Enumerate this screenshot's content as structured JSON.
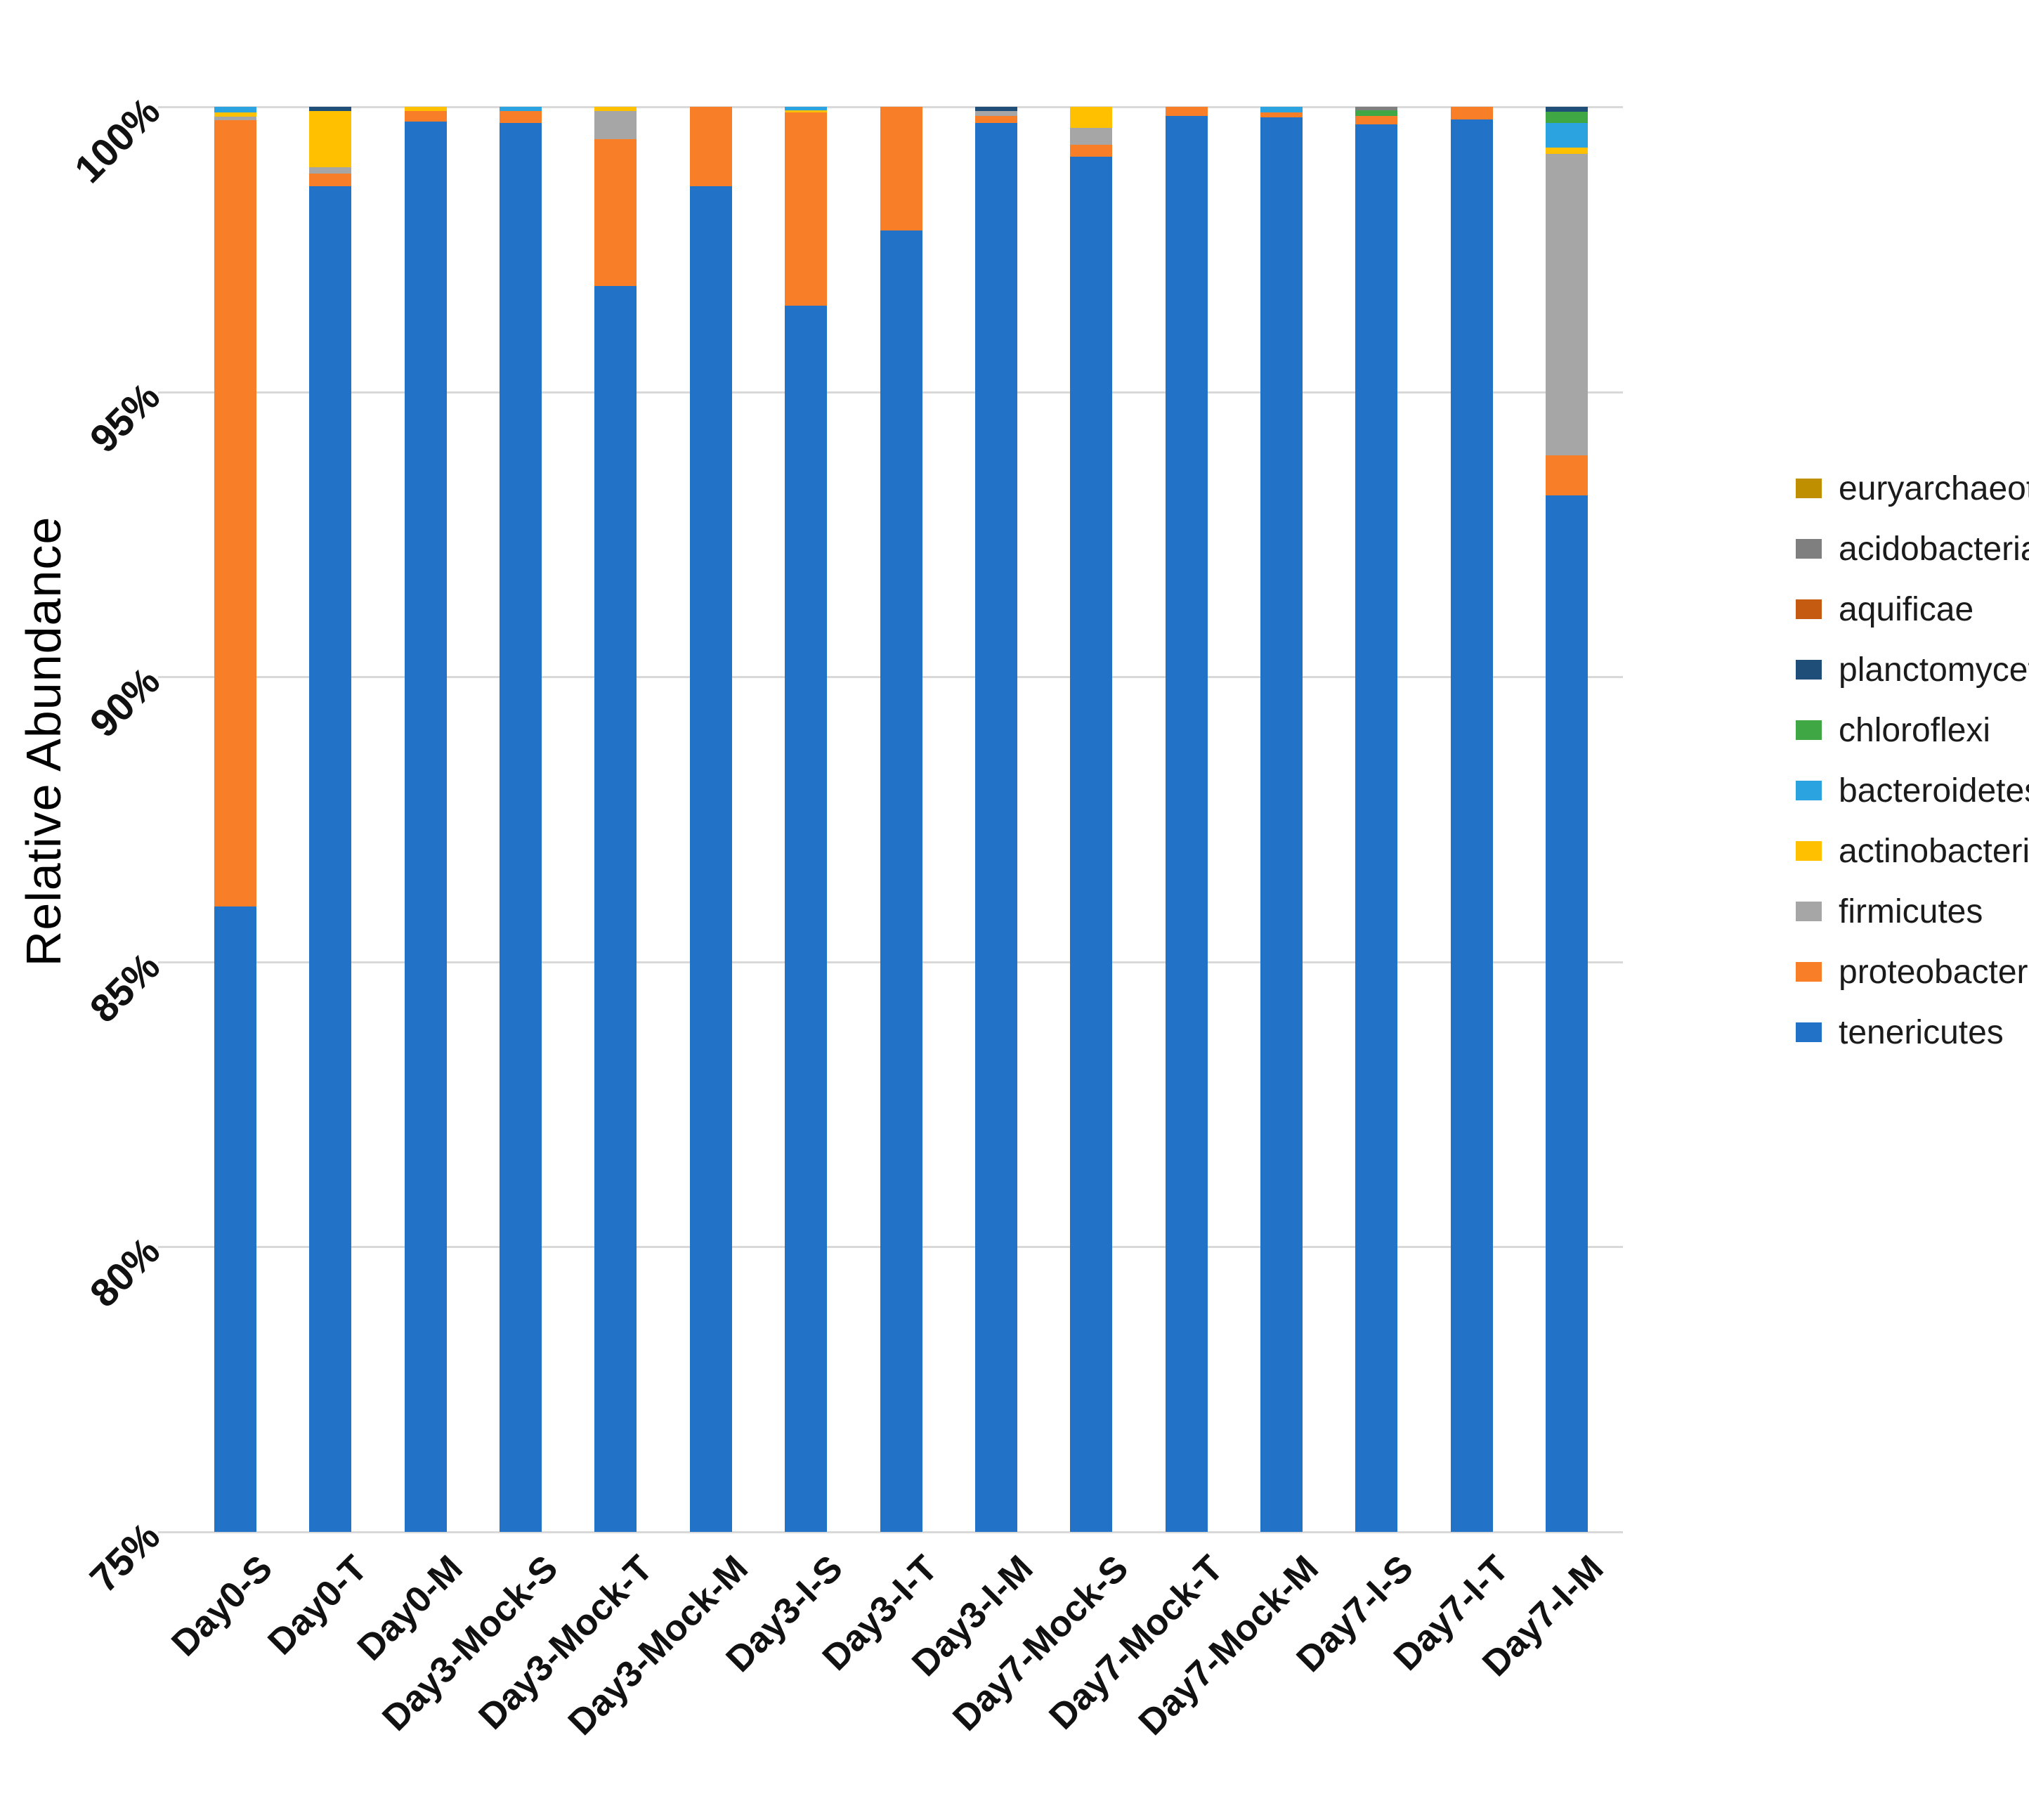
{
  "figure": {
    "background_color": "#FFFFFF",
    "grid_color": "#D9D9D9",
    "text_color": "#1B1B1B"
  },
  "chart_data": {
    "type": "bar",
    "stacked": true,
    "title": "",
    "xlabel": "",
    "ylabel": "Relative Abundance",
    "ylim": [
      75,
      100
    ],
    "ytick_step": 5,
    "ytick_labels": [
      "75%",
      "80%",
      "85%",
      "90%",
      "95%",
      "100%"
    ],
    "grid": true,
    "legend_position": "right",
    "categories": [
      "Day0-S",
      "Day0-T",
      "Day0-M",
      "Day3-Mock-S",
      "Day3-Mock-T",
      "Day3-Mock-M",
      "Day3-I-S",
      "Day3-I-T",
      "Day3-I-M",
      "Day7-Mock-S",
      "Day7-Mock-T",
      "Day7-Mock-M",
      "Day7-I-S",
      "Day7-I-T",
      "Day7-I-M"
    ],
    "series": [
      {
        "name": "tenericutes",
        "color": "#2272C7",
        "values": [
          85.97,
          98.61,
          99.74,
          99.72,
          96.86,
          98.61,
          96.51,
          97.83,
          99.72,
          99.12,
          99.84,
          99.82,
          99.69,
          99.78,
          93.18
        ]
      },
      {
        "name": "proteobacteria",
        "color": "#F87E27",
        "values": [
          13.8,
          0.22,
          0.19,
          0.21,
          2.57,
          1.39,
          3.39,
          2.17,
          0.12,
          0.22,
          0.16,
          0.08,
          0.15,
          0.22,
          0.7
        ]
      },
      {
        "name": "firmicutes",
        "color": "#A6A6A6",
        "values": [
          0.06,
          0.11,
          0,
          0,
          0.5,
          0,
          0,
          0,
          0.09,
          0.29,
          0,
          0,
          0,
          0,
          5.29
        ]
      },
      {
        "name": "actinobacteria",
        "color": "#FFC000",
        "values": [
          0.07,
          0.99,
          0.07,
          0,
          0.07,
          0,
          0.04,
          0,
          0,
          0.37,
          0,
          0,
          0,
          0,
          0.12
        ]
      },
      {
        "name": "bacteroidetes",
        "color": "#2BA3E0",
        "values": [
          0.1,
          0,
          0,
          0.07,
          0,
          0,
          0.06,
          0,
          0,
          0,
          0,
          0.1,
          0,
          0,
          0.43
        ]
      },
      {
        "name": "chloroflexi",
        "color": "#3FA845",
        "values": [
          0,
          0,
          0,
          0,
          0,
          0,
          0,
          0,
          0,
          0,
          0,
          0,
          0.1,
          0,
          0.19
        ]
      },
      {
        "name": "planctomycetes",
        "color": "#1F4E79",
        "values": [
          0,
          0.07,
          0,
          0,
          0,
          0,
          0,
          0,
          0.07,
          0,
          0,
          0,
          0,
          0,
          0.09
        ]
      },
      {
        "name": "aquificae",
        "color": "#C55A11",
        "values": [
          0,
          0,
          0,
          0,
          0,
          0,
          0,
          0,
          0,
          0,
          0,
          0,
          0,
          0,
          0
        ]
      },
      {
        "name": "acidobacteria",
        "color": "#7F7F7F",
        "values": [
          0,
          0,
          0,
          0,
          0,
          0,
          0,
          0,
          0,
          0,
          0,
          0,
          0.06,
          0,
          0
        ]
      },
      {
        "name": "euryarchaeota",
        "color": "#BF8F00",
        "values": [
          0,
          0,
          0,
          0,
          0,
          0,
          0,
          0,
          0,
          0,
          0,
          0,
          0,
          0,
          0
        ]
      }
    ]
  },
  "legend": {
    "items": [
      {
        "label": "euryarchaeota",
        "color": "#BF8F00"
      },
      {
        "label": "acidobacteria",
        "color": "#7F7F7F"
      },
      {
        "label": "aquificae",
        "color": "#C55A11"
      },
      {
        "label": "planctomycetes",
        "color": "#1F4E79"
      },
      {
        "label": "chloroflexi",
        "color": "#3FA845"
      },
      {
        "label": "bacteroidetes",
        "color": "#2BA3E0"
      },
      {
        "label": "actinobacteria",
        "color": "#FFC000"
      },
      {
        "label": "firmicutes",
        "color": "#A6A6A6"
      },
      {
        "label": "proteobacteria",
        "color": "#F87E27"
      },
      {
        "label": "tenericutes",
        "color": "#2272C7"
      }
    ]
  }
}
